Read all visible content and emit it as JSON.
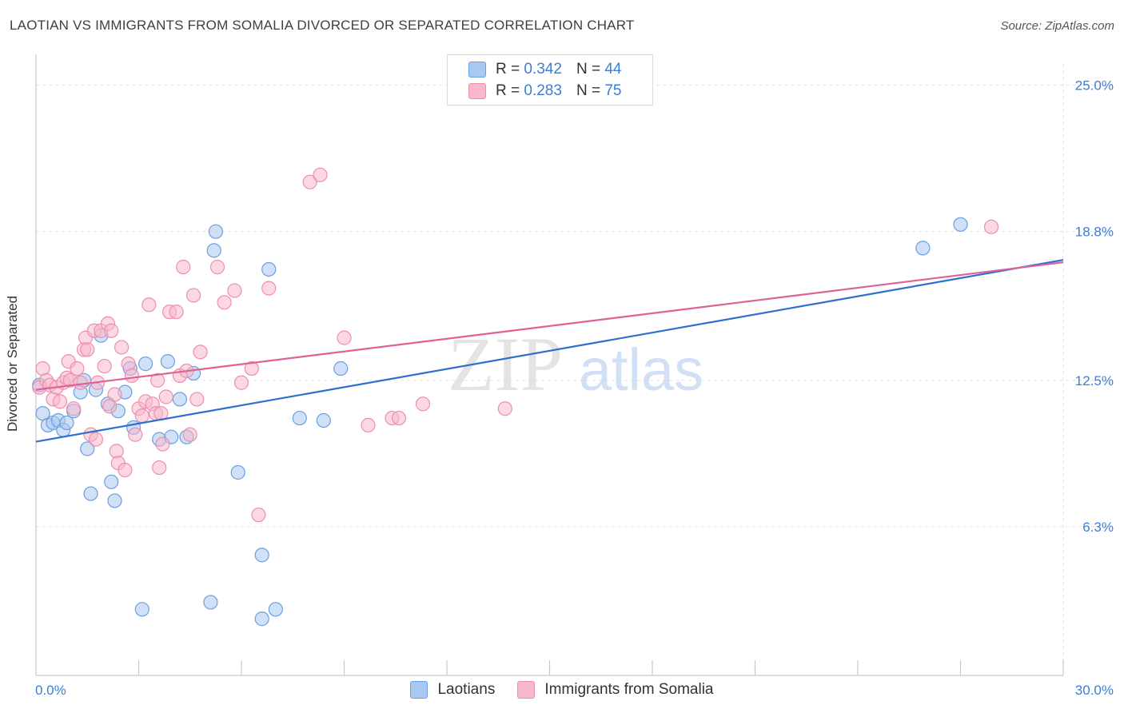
{
  "title": "LAOTIAN VS IMMIGRANTS FROM SOMALIA DIVORCED OR SEPARATED CORRELATION CHART",
  "source": "Source: ZipAtlas.com",
  "watermark": {
    "zip": "ZIP",
    "atlas": "atlas"
  },
  "legend_top": [
    {
      "r_label": "R =",
      "r_value": "0.342",
      "n_label": "N =",
      "n_value": "44"
    },
    {
      "r_label": "R =",
      "r_value": "0.283",
      "n_label": "N =",
      "n_value": "75"
    }
  ],
  "legend_bottom": [
    {
      "label": "Laotians"
    },
    {
      "label": "Immigrants from Somalia"
    }
  ],
  "colors": {
    "blue_fill": "#a9c8f0",
    "blue_stroke": "#6a9fe0",
    "blue_line": "#2d6fd0",
    "pink_fill": "#f7b8cb",
    "pink_stroke": "#ec8fae",
    "pink_line": "#e0609a",
    "axis_text": "#3b7dd8",
    "grid": "#e3e3e3"
  },
  "chart_data": {
    "type": "scatter",
    "xlabel": "",
    "ylabel": "Divorced or Separated",
    "xlim": [
      0,
      30
    ],
    "ylim": [
      0,
      25.9
    ],
    "x_tick_labels": [
      "0.0%",
      "30.0%"
    ],
    "y_ticks": [
      {
        "value": 25.0,
        "label": "25.0%"
      },
      {
        "value": 18.8,
        "label": "18.8%"
      },
      {
        "value": 12.5,
        "label": "12.5%"
      },
      {
        "value": 6.3,
        "label": "6.3%"
      }
    ],
    "grid": true,
    "series": [
      {
        "name": "Laotians",
        "color": "blue",
        "trend": {
          "x": [
            0,
            30
          ],
          "y": [
            9.9,
            17.6
          ]
        },
        "points": [
          [
            0.1,
            12.3
          ],
          [
            0.2,
            11.1
          ],
          [
            0.35,
            10.6
          ],
          [
            0.5,
            10.7
          ],
          [
            0.65,
            10.8
          ],
          [
            0.8,
            10.4
          ],
          [
            0.9,
            10.7
          ],
          [
            1.1,
            11.2
          ],
          [
            1.3,
            12.0
          ],
          [
            1.4,
            12.5
          ],
          [
            1.5,
            9.6
          ],
          [
            1.6,
            7.7
          ],
          [
            1.9,
            14.4
          ],
          [
            1.75,
            12.1
          ],
          [
            2.1,
            11.5
          ],
          [
            2.2,
            8.2
          ],
          [
            2.3,
            7.4
          ],
          [
            2.4,
            11.2
          ],
          [
            2.6,
            12.0
          ],
          [
            2.75,
            13.0
          ],
          [
            2.85,
            10.5
          ],
          [
            3.1,
            2.8
          ],
          [
            3.2,
            13.2
          ],
          [
            3.6,
            10.0
          ],
          [
            3.85,
            13.3
          ],
          [
            3.95,
            10.1
          ],
          [
            4.2,
            11.7
          ],
          [
            4.4,
            10.1
          ],
          [
            4.6,
            12.8
          ],
          [
            5.1,
            3.1
          ],
          [
            5.2,
            18.0
          ],
          [
            5.25,
            18.8
          ],
          [
            5.9,
            8.6
          ],
          [
            6.6,
            5.1
          ],
          [
            6.6,
            2.4
          ],
          [
            6.8,
            17.2
          ],
          [
            7.0,
            2.8
          ],
          [
            7.7,
            10.9
          ],
          [
            8.4,
            10.8
          ],
          [
            8.9,
            13.0
          ],
          [
            25.9,
            18.1
          ],
          [
            27.0,
            19.1
          ]
        ]
      },
      {
        "name": "Immigrants from Somalia",
        "color": "pink",
        "trend": {
          "x": [
            0,
            30
          ],
          "y": [
            12.1,
            17.5
          ]
        },
        "points": [
          [
            0.1,
            12.2
          ],
          [
            0.2,
            13.0
          ],
          [
            0.3,
            12.5
          ],
          [
            0.4,
            12.3
          ],
          [
            0.5,
            11.7
          ],
          [
            0.6,
            12.2
          ],
          [
            0.7,
            11.6
          ],
          [
            0.8,
            12.4
          ],
          [
            0.9,
            12.6
          ],
          [
            0.95,
            13.3
          ],
          [
            1.0,
            12.5
          ],
          [
            1.1,
            11.3
          ],
          [
            1.2,
            13.0
          ],
          [
            1.3,
            12.4
          ],
          [
            1.4,
            13.8
          ],
          [
            1.45,
            14.3
          ],
          [
            1.5,
            13.8
          ],
          [
            1.6,
            10.2
          ],
          [
            1.7,
            14.6
          ],
          [
            1.75,
            10.0
          ],
          [
            1.8,
            12.4
          ],
          [
            1.9,
            14.6
          ],
          [
            2.0,
            13.1
          ],
          [
            2.1,
            14.9
          ],
          [
            2.15,
            11.4
          ],
          [
            2.2,
            14.6
          ],
          [
            2.3,
            11.9
          ],
          [
            2.35,
            9.5
          ],
          [
            2.4,
            9.0
          ],
          [
            2.5,
            13.9
          ],
          [
            2.6,
            8.7
          ],
          [
            2.7,
            13.2
          ],
          [
            2.8,
            12.7
          ],
          [
            2.9,
            10.2
          ],
          [
            3.0,
            11.3
          ],
          [
            3.1,
            11.0
          ],
          [
            3.2,
            11.6
          ],
          [
            3.3,
            15.7
          ],
          [
            3.4,
            11.5
          ],
          [
            3.5,
            11.1
          ],
          [
            3.55,
            12.5
          ],
          [
            3.6,
            8.8
          ],
          [
            3.65,
            11.1
          ],
          [
            3.7,
            9.8
          ],
          [
            3.8,
            11.8
          ],
          [
            3.9,
            15.4
          ],
          [
            4.1,
            15.4
          ],
          [
            4.2,
            12.7
          ],
          [
            4.3,
            17.3
          ],
          [
            4.4,
            12.9
          ],
          [
            4.5,
            10.2
          ],
          [
            4.6,
            16.1
          ],
          [
            4.7,
            11.7
          ],
          [
            4.8,
            13.7
          ],
          [
            5.3,
            17.3
          ],
          [
            5.5,
            15.8
          ],
          [
            5.8,
            16.3
          ],
          [
            6.0,
            12.4
          ],
          [
            6.3,
            13.0
          ],
          [
            6.5,
            6.8
          ],
          [
            6.8,
            16.4
          ],
          [
            8.0,
            20.9
          ],
          [
            8.3,
            21.2
          ],
          [
            9.0,
            14.3
          ],
          [
            9.7,
            10.6
          ],
          [
            10.4,
            10.9
          ],
          [
            10.6,
            10.9
          ],
          [
            11.3,
            11.5
          ],
          [
            13.7,
            11.3
          ],
          [
            27.9,
            19.0
          ]
        ]
      }
    ]
  }
}
